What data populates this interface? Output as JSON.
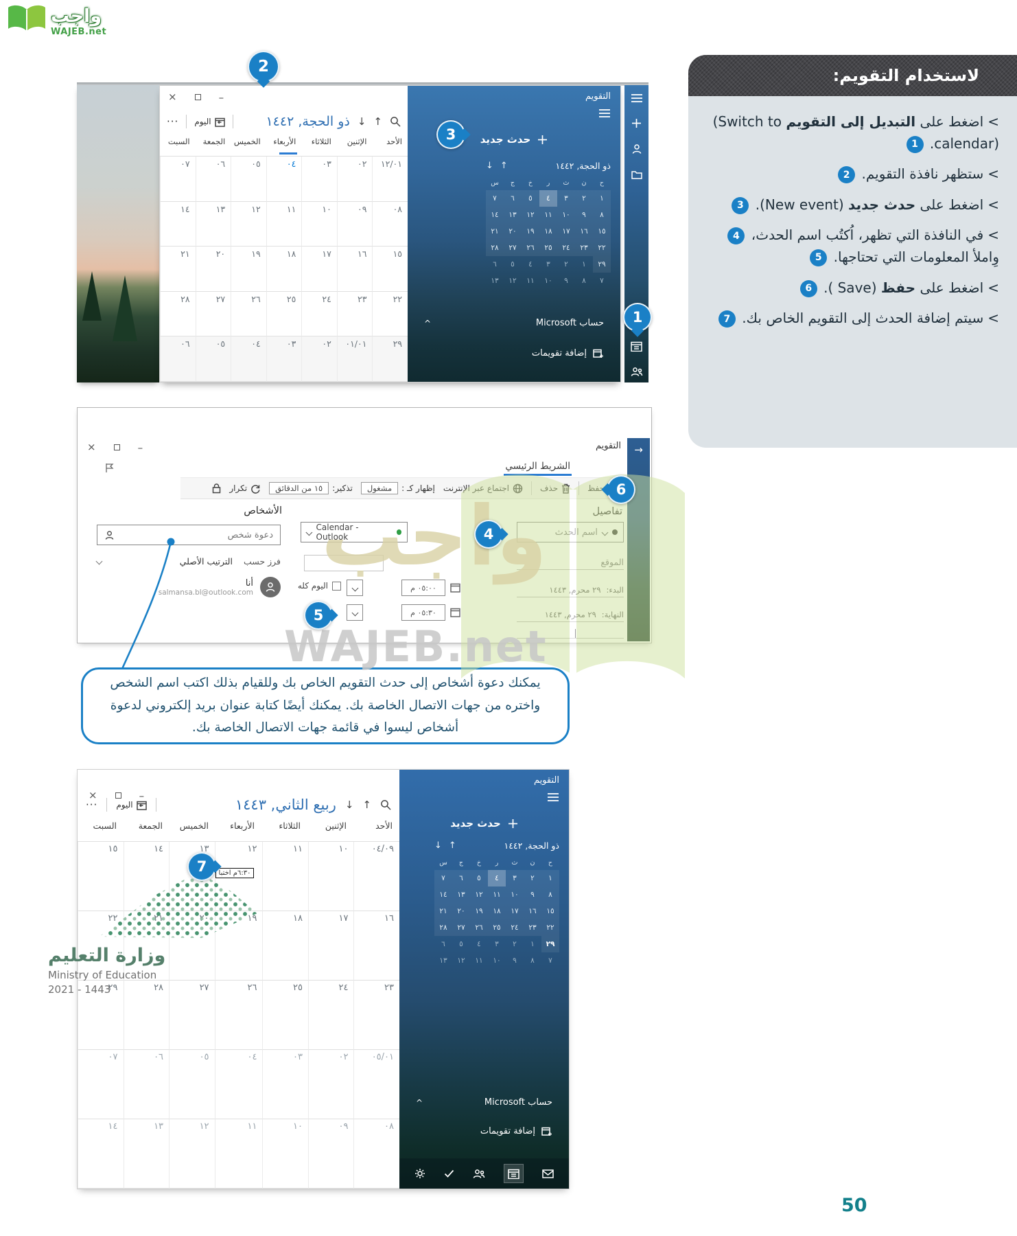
{
  "page": {
    "number": "50"
  },
  "logo": {
    "name": "واجب",
    "site_prefix": "WAJEB",
    "site_suffix": ".net"
  },
  "watermark": {
    "arabic": "واجب",
    "latin": "WAJEB.net"
  },
  "ministry": {
    "name": "وزارة التعليم",
    "name_en": "Ministry of Education",
    "years": "2021 - 1443"
  },
  "panel": {
    "title": "لاستخدام التقويم:",
    "marker": "<",
    "items": [
      {
        "num": "1",
        "segments": [
          {
            "t": "اضغط على "
          },
          {
            "t": "التبديل إلى التقويم",
            "b": true
          },
          {
            "t": " "
          },
          {
            "t": "(Switch to calendar)",
            "ltr": true
          },
          {
            "t": ". "
          }
        ]
      },
      {
        "num": "2",
        "segments": [
          {
            "t": "ستظهر نافذة التقويم. "
          }
        ]
      },
      {
        "num": "3",
        "segments": [
          {
            "t": "اضغط على "
          },
          {
            "t": "حدث جديد",
            "b": true
          },
          {
            "t": " "
          },
          {
            "t": "(New event)",
            "ltr": true
          },
          {
            "t": ". "
          }
        ]
      },
      {
        "num": "5",
        "segments": [
          {
            "t": "في النافذة التي تظهر، اُكتُب اسم الحدث، "
          },
          {
            "n": "4"
          },
          {
            "t": " وِاملأ المعلومات التي تحتاجها. "
          }
        ]
      },
      {
        "num": "6",
        "segments": [
          {
            "t": "اضغط على "
          },
          {
            "t": "حفظ",
            "b": true
          },
          {
            "t": " "
          },
          {
            "t": "( Save)",
            "ltr": true
          },
          {
            "t": ". "
          }
        ]
      },
      {
        "num": "7",
        "segments": [
          {
            "t": "سيتم إضافة الحدث إلى التقويم الخاص بك. "
          }
        ]
      }
    ]
  },
  "tip": {
    "text": "يمكنك دعوة أشخاص إلى حدث التقويم الخاص بك وللقيام بذلك اكتب اسم الشخص واختره من جهات الاتصال الخاصة بك. يمكنك أيضًا كتابة عنوان بريد إلكتروني لدعوة أشخاص ليسوا في قائمة جهات الاتصال الخاصة بك."
  },
  "callouts": {
    "c1": "1",
    "c2": "2",
    "c3": "3",
    "c4": "4",
    "c5": "5",
    "c6": "6",
    "c7": "7"
  },
  "cal1": {
    "controls": {
      "close": "×",
      "maximize": "",
      "minimize": "–"
    },
    "toolbar": {
      "more": "···",
      "today": "اليوم",
      "title": "ذو الحجة, ١٤٤٢",
      "up": "↑",
      "down": "↓"
    },
    "day_headers": [
      "الأحد",
      "الإثنين",
      "الثلاثاء",
      "الأربعاء",
      "الخميس",
      "الجمعة",
      "السبت"
    ],
    "today_header_col": 3,
    "weeks": [
      [
        "١٢/٠١",
        "٠٢",
        "٠٣",
        "٠٤",
        "٠٥",
        "٠٦",
        "٠٧"
      ],
      [
        "٠٨",
        "٠٩",
        "١٠",
        "١١",
        "١٢",
        "١٣",
        "١٤"
      ],
      [
        "١٥",
        "١٦",
        "١٧",
        "١٨",
        "١٩",
        "٢٠",
        "٢١"
      ],
      [
        "٢٢",
        "٢٣",
        "٢٤",
        "٢٥",
        "٢٦",
        "٢٧",
        "٢٨"
      ],
      [
        "٢٩",
        "٠١/٠١",
        "٠٢",
        "٠٣",
        "٠٤",
        "٠٥",
        "٠٦"
      ]
    ],
    "today_cell": [
      0,
      3
    ],
    "shaded_week": 4,
    "sidebar": {
      "app": "التقويم",
      "new_event": "حدث جديد",
      "mini": {
        "title": "ذو الحجة, ١٤٤٢",
        "up": "↑",
        "down": "↓",
        "letters": [
          "ح",
          "ن",
          "ث",
          "ر",
          "خ",
          "ج",
          "س"
        ],
        "rows": [
          [
            "١",
            "٢",
            "٣",
            "٤",
            "٥",
            "٦",
            "٧"
          ],
          [
            "٨",
            "٩",
            "١٠",
            "١١",
            "١٢",
            "١٣",
            "١٤"
          ],
          [
            "١٥",
            "١٦",
            "١٧",
            "١٨",
            "١٩",
            "٢٠",
            "٢١"
          ],
          [
            "٢٢",
            "٢٣",
            "٢٤",
            "٢٥",
            "٢٦",
            "٢٧",
            "٢٨"
          ],
          [
            "٢٩",
            "١",
            "٢",
            "٣",
            "٤",
            "٥",
            "٦"
          ],
          [
            "٧",
            "٨",
            "٩",
            "١٠",
            "١١",
            "١٢",
            "١٣"
          ]
        ],
        "today": [
          0,
          3
        ]
      },
      "account": "حساب Microsoft",
      "account_caret": "^",
      "add_calendars": "إضافة تقويمات"
    }
  },
  "event_win": {
    "app": "التقويم",
    "back_arrow": "→",
    "tab": "الشريط الرئيسي",
    "ribbon": {
      "save": "حفظ",
      "delete": "حذف",
      "online_meeting": "اجتماع عبر الإنترنت",
      "show_as_label": "إظهار كـ :",
      "show_as_value": "مشغول",
      "reminder_label": "تذكير:",
      "reminder_value": "١٥ من الدقائق",
      "repeat": "تكرار"
    },
    "details": {
      "heading": "تفاصيل",
      "event_name_placeholder": "اسم الحدث",
      "location_placeholder": "الموقع",
      "start_label": "البدء:",
      "start_date": "٢٩ محرم, ١٤٤٣",
      "start_time": "٠٥:٠٠ م",
      "end_label": "النهاية:",
      "end_date": "٢٩ محرم, ١٤٤٣",
      "end_time": "٠٥:٣٠ م",
      "all_day": "اليوم كله",
      "calendar_select": "Calendar - Outlook"
    },
    "people": {
      "heading": "الأشخاص",
      "invite_placeholder": "دعوة شخص",
      "sort_label": "فرز حسب",
      "sort_value": "الترتيب الأصلي",
      "me": "أنا",
      "email": "salmansa.bl@outlook.com"
    }
  },
  "cal3": {
    "toolbar": {
      "more": "···",
      "today": "اليوم",
      "title": "ربيع الثاني, ١٤٤٣",
      "up": "↑",
      "down": "↓"
    },
    "day_headers": [
      "الأحد",
      "الإثنين",
      "الثلاثاء",
      "الأربعاء",
      "الخميس",
      "الجمعة",
      "السبت"
    ],
    "weeks": [
      [
        "٠٤/٠٩",
        "١٠",
        "١١",
        "١٢",
        "١٣",
        "١٤",
        "١٥"
      ],
      [
        "١٦",
        "١٧",
        "١٨",
        "١٩",
        "٢٠",
        "٢١",
        "٢٢"
      ],
      [
        "٢٣",
        "٢٤",
        "٢٥",
        "٢٦",
        "٢٧",
        "٢٨",
        "٢٩"
      ],
      [
        "٠٥/٠١",
        "٠٢",
        "٠٣",
        "٠٤",
        "٠٥",
        "٠٦",
        "٠٧"
      ],
      [
        "٠٨",
        "٠٩",
        "١٠",
        "١١",
        "١٢",
        "١٣",
        "١٤"
      ]
    ],
    "dim_weeks": [
      3,
      4
    ],
    "event": {
      "week": 0,
      "col": 3,
      "text": "٦:٣٠م اختبا"
    },
    "sidebar": {
      "app": "التقويم",
      "new_event": "حدث جديد",
      "mini": {
        "title": "ذو الحجة, ١٤٤٢",
        "up": "↑",
        "down": "↓",
        "letters": [
          "ح",
          "ن",
          "ث",
          "ر",
          "خ",
          "ج",
          "س"
        ],
        "rows": [
          [
            "١",
            "٢",
            "٣",
            "٤",
            "٥",
            "٦",
            "٧"
          ],
          [
            "٨",
            "٩",
            "١٠",
            "١١",
            "١٢",
            "١٣",
            "١٤"
          ],
          [
            "١٥",
            "١٦",
            "١٧",
            "١٨",
            "١٩",
            "٢٠",
            "٢١"
          ],
          [
            "٢٢",
            "٢٣",
            "٢٤",
            "٢٥",
            "٢٦",
            "٢٧",
            "٢٨"
          ],
          [
            "٢٩",
            "١",
            "٢",
            "٣",
            "٤",
            "٥",
            "٦"
          ],
          [
            "٧",
            "٨",
            "٩",
            "١٠",
            "١١",
            "١٢",
            "١٣"
          ]
        ],
        "today": [
          0,
          3
        ],
        "event_day": [
          4,
          0
        ]
      },
      "account": "حساب Microsoft",
      "account_caret": "^",
      "add_calendars": "إضافة تقويمات"
    }
  },
  "colors": {
    "accent": "#1a80c6",
    "calendar_title": "#2f6fb2",
    "tab_underline": "#2b7cd3",
    "sidebar_top": "#3a77b0",
    "sidebar_bottom": "#102a30",
    "page_number": "#13808b",
    "wajeb_green": "#43a047",
    "calendar_dot_green": "#2f9e44"
  }
}
